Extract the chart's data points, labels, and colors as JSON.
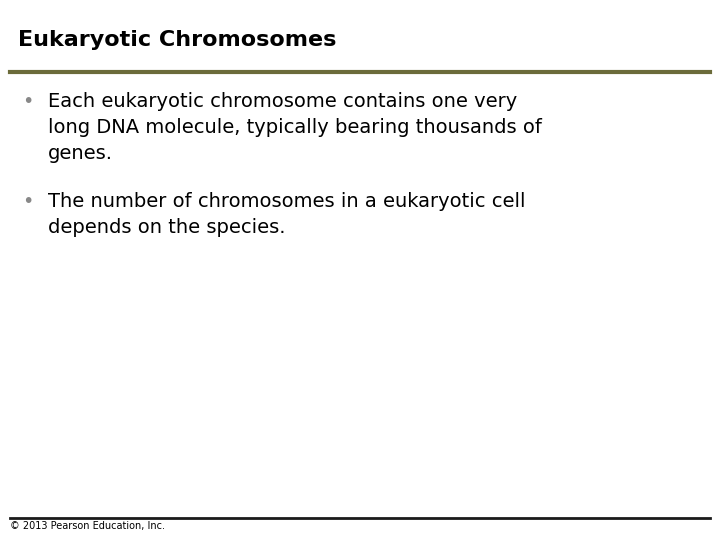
{
  "title": "Eukaryotic Chromosomes",
  "title_fontsize": 16,
  "title_color": "#000000",
  "title_fontweight": "bold",
  "separator_color": "#6b6b3a",
  "separator_linewidth": 3.0,
  "bullet1_lines": [
    "Each eukaryotic chromosome contains one very",
    "long DNA molecule, typically bearing thousands of",
    "genes."
  ],
  "bullet2_lines": [
    "The number of chromosomes in a eukaryotic cell",
    "depends on the species."
  ],
  "bullet_fontsize": 14,
  "bullet_color": "#000000",
  "bullet_symbol": "•",
  "footer_text": "© 2013 Pearson Education, Inc.",
  "footer_fontsize": 7,
  "footer_color": "#000000",
  "footer_separator_color": "#1a1a1a",
  "footer_separator_linewidth": 2.0,
  "background_color": "#ffffff"
}
